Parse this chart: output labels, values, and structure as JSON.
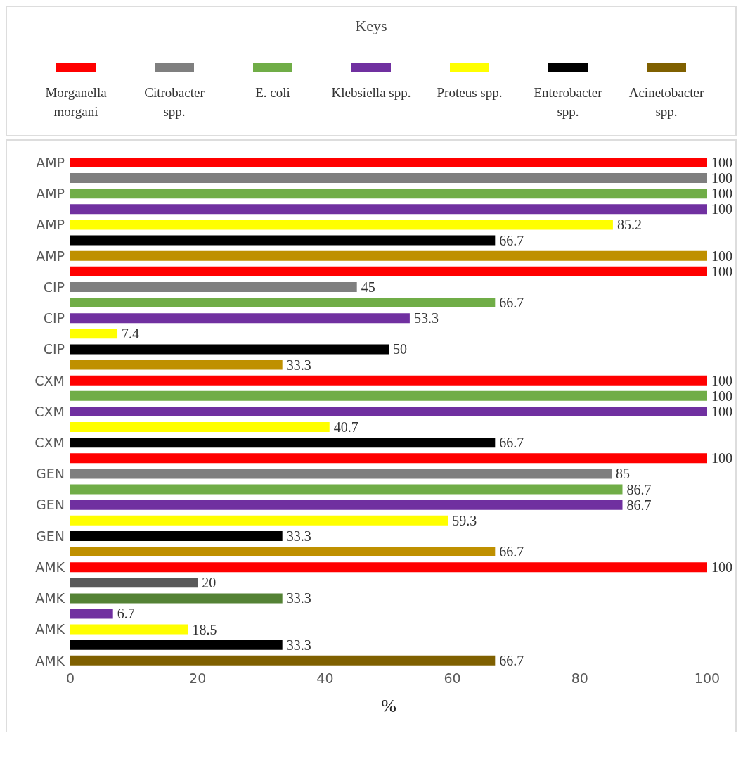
{
  "chart_data": {
    "type": "bar",
    "orientation": "horizontal",
    "stacked": true,
    "legend_title": "Keys",
    "legend": "top",
    "xlabel": "%",
    "xlim": [
      0,
      100
    ],
    "xticks": [
      0,
      20,
      40,
      60,
      80,
      100
    ],
    "grid": false,
    "data_labels": true,
    "categories": [
      "AMP",
      null,
      "AMP",
      null,
      "AMP",
      null,
      "AMP",
      null,
      "CIP",
      null,
      "CIP",
      null,
      "CIP",
      null,
      "CXM",
      null,
      "CXM",
      null,
      "CXM",
      null,
      "GEN",
      null,
      "GEN",
      null,
      "GEN",
      null,
      "AMK",
      null,
      "AMK",
      null,
      "AMK",
      null,
      "AMK"
    ],
    "series": [
      {
        "name": "Morganella morgani",
        "color": "#ff0000",
        "values": [
          100,
          null,
          null,
          null,
          null,
          null,
          null,
          100,
          null,
          null,
          null,
          null,
          null,
          null,
          100,
          null,
          null,
          null,
          null,
          100,
          null,
          null,
          null,
          null,
          null,
          null,
          100,
          null,
          null,
          null,
          null,
          null,
          null
        ]
      },
      {
        "name": "Citrobacter spp.",
        "color": "#7f7f7f",
        "colors": [
          "#7f7f7f",
          "#7f7f7f",
          "#7f7f7f",
          "#7f7f7f",
          "#7f7f7f",
          "#7f7f7f",
          "#7f7f7f",
          "#7f7f7f",
          "#7f7f7f",
          "#7f7f7f",
          "#7f7f7f",
          "#7f7f7f",
          "#7f7f7f",
          "#7f7f7f",
          "#7f7f7f",
          "#7f7f7f",
          "#7f7f7f",
          "#7f7f7f",
          "#7f7f7f",
          "#7f7f7f",
          "#7f7f7f",
          "#7f7f7f",
          "#7f7f7f",
          "#7f7f7f",
          "#7f7f7f",
          "#7f7f7f",
          "#7f7f7f",
          "#595959",
          "#595959",
          "#595959",
          "#595959",
          "#595959",
          "#595959"
        ],
        "values": [
          null,
          100,
          null,
          null,
          null,
          null,
          null,
          null,
          45,
          null,
          null,
          null,
          null,
          null,
          null,
          null,
          null,
          null,
          null,
          null,
          85,
          null,
          null,
          null,
          null,
          null,
          null,
          20,
          null,
          null,
          null,
          null,
          null
        ]
      },
      {
        "name": "E. coli",
        "color": "#70ad47",
        "colors": [
          "#70ad47",
          "#70ad47",
          "#70ad47",
          "#70ad47",
          "#70ad47",
          "#70ad47",
          "#70ad47",
          "#70ad47",
          "#70ad47",
          "#70ad47",
          "#70ad47",
          "#70ad47",
          "#70ad47",
          "#70ad47",
          "#70ad47",
          "#70ad47",
          "#70ad47",
          "#70ad47",
          "#70ad47",
          "#70ad47",
          "#70ad47",
          "#70ad47",
          "#70ad47",
          "#70ad47",
          "#70ad47",
          "#70ad47",
          "#70ad47",
          "#70ad47",
          "#548235",
          "#548235",
          "#548235",
          "#548235",
          "#548235"
        ],
        "values": [
          null,
          null,
          100,
          null,
          null,
          null,
          null,
          null,
          null,
          66.7,
          null,
          null,
          null,
          null,
          null,
          100,
          null,
          null,
          null,
          null,
          null,
          86.7,
          null,
          null,
          null,
          null,
          null,
          null,
          33.3,
          null,
          null,
          null,
          null
        ]
      },
      {
        "name": "Klebsiella spp.",
        "color": "#7030a0",
        "values": [
          null,
          null,
          null,
          100,
          null,
          null,
          null,
          null,
          null,
          null,
          53.3,
          null,
          null,
          null,
          null,
          null,
          100,
          null,
          null,
          null,
          null,
          null,
          86.7,
          null,
          null,
          null,
          null,
          null,
          null,
          6.7,
          null,
          null,
          null
        ]
      },
      {
        "name": "Proteus spp.",
        "color": "#ffff00",
        "values": [
          null,
          null,
          null,
          null,
          85.2,
          null,
          null,
          null,
          null,
          null,
          null,
          7.4,
          null,
          null,
          null,
          null,
          null,
          40.7,
          null,
          null,
          null,
          null,
          null,
          59.3,
          null,
          null,
          null,
          null,
          null,
          null,
          18.5,
          null,
          null
        ]
      },
      {
        "name": "Enterobacter spp.",
        "color": "#000000",
        "values": [
          null,
          null,
          null,
          null,
          null,
          66.7,
          null,
          null,
          null,
          null,
          null,
          null,
          50,
          null,
          null,
          null,
          null,
          null,
          66.7,
          null,
          null,
          null,
          null,
          null,
          33.3,
          null,
          null,
          null,
          null,
          null,
          null,
          33.3,
          null
        ]
      },
      {
        "name": "Acinetobacter spp.",
        "color": "#7f6000",
        "colors": [
          "#bf9000",
          "#bf9000",
          "#bf9000",
          "#bf9000",
          "#bf9000",
          "#bf9000",
          "#bf9000",
          "#bf9000",
          "#bf9000",
          "#bf9000",
          "#bf9000",
          "#bf9000",
          "#bf9000",
          "#bf9000",
          "#bf9000",
          "#bf9000",
          "#bf9000",
          "#bf9000",
          "#bf9000",
          "#bf9000",
          "#bf9000",
          "#bf9000",
          "#bf9000",
          "#bf9000",
          "#bf9000",
          "#bf9000",
          "#bf9000",
          "#bf9000",
          "#bf9000",
          "#bf9000",
          "#bf9000",
          "#bf9000",
          "#7f6000"
        ],
        "values": [
          null,
          null,
          null,
          null,
          null,
          null,
          100,
          null,
          null,
          null,
          null,
          null,
          null,
          33.3,
          null,
          null,
          null,
          null,
          null,
          null,
          null,
          null,
          null,
          null,
          null,
          66.7,
          null,
          null,
          null,
          null,
          null,
          null,
          66.7
        ]
      }
    ]
  }
}
